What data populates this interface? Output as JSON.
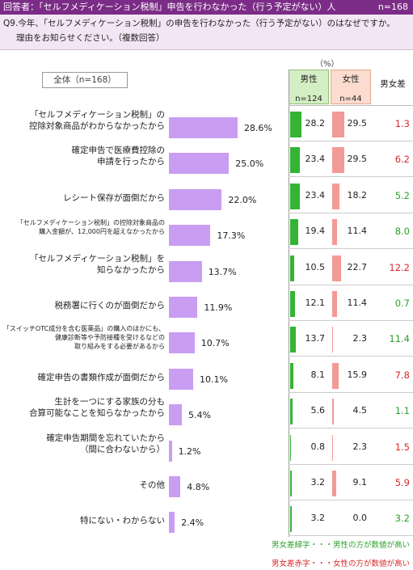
{
  "header": {
    "respondents": "回答者：「セルフメディケーション税制」申告を行わなかった（行う予定がない）人",
    "total_n": "n=168"
  },
  "question": {
    "line1": "Q9.今年、「セルフメディケーション税制」の申告を行わなかった（行う予定がない）のはなぜですか。",
    "line2": "理由をお知らせください。（複数回答）"
  },
  "total_box": "全体（n=168）",
  "pct_unit": "（%）",
  "columns": {
    "male_label": "男性",
    "male_n": "n=124",
    "female_label": "女性",
    "female_n": "n=44",
    "diff_label": "男女差"
  },
  "colors": {
    "bar": "#c99df2",
    "male": "#35b335",
    "female": "#f29a96",
    "green_text": "#2ea02e",
    "red_text": "#d9282a"
  },
  "chart_data": {
    "type": "bar",
    "orientation": "horizontal",
    "unit": "%",
    "categories": [
      [
        "「セルフメディケーション税制」の",
        "控除対象商品がわからなかったから"
      ],
      [
        "確定申告で医療費控除の",
        "申請を行ったから"
      ],
      [
        "レシート保存が面倒だから"
      ],
      [
        "「セルフメディケーション税制」の控除対象商品の",
        "購入金額が、12,000円を超えなかったから"
      ],
      [
        "「セルフメディケーション税制」を",
        "知らなかったから"
      ],
      [
        "税務署に行くのが面倒だから"
      ],
      [
        "「スイッチOTC成分を含む医薬品」の購入のほかにも、",
        "健康診断等や予防接種を受けるなどの",
        "取り組みをする必要があるから"
      ],
      [
        "確定申告の書類作成が面倒だから"
      ],
      [
        "生計を一つにする家族の分も",
        "合算可能なことを知らなかったから"
      ],
      [
        "確定申告期間を忘れていたから",
        "（間に合わないから）"
      ],
      [
        "その他"
      ],
      [
        "特にない・わからない"
      ]
    ],
    "small_label_rows": [
      3,
      6
    ],
    "values": [
      28.6,
      25.0,
      22.0,
      17.3,
      13.7,
      11.9,
      10.7,
      10.1,
      5.4,
      1.2,
      4.8,
      2.4
    ],
    "value_labels": [
      "28.6%",
      "25.0%",
      "22.0%",
      "17.3%",
      "13.7%",
      "11.9%",
      "10.7%",
      "10.1%",
      "5.4%",
      "1.2%",
      "4.8%",
      "2.4%"
    ],
    "male": [
      "28.2",
      "23.4",
      "23.4",
      "19.4",
      "10.5",
      "12.1",
      "13.7",
      "8.1",
      "5.6",
      "0.8",
      "3.2",
      "3.2"
    ],
    "female": [
      "29.5",
      "29.5",
      "18.2",
      "11.4",
      "22.7",
      "11.4",
      "2.3",
      "15.9",
      "4.5",
      "2.3",
      "9.1",
      "0.0"
    ],
    "diff": [
      "1.3",
      "6.2",
      "5.2",
      "8.0",
      "12.2",
      "0.7",
      "11.4",
      "7.8",
      "1.1",
      "1.5",
      "5.9",
      "3.2"
    ],
    "diff_color": [
      "red",
      "red",
      "green",
      "green",
      "red",
      "green",
      "green",
      "red",
      "green",
      "red",
      "red",
      "green"
    ],
    "xlim": [
      0,
      100
    ]
  },
  "notes": {
    "green": "男女差緑字・・・男性の方が数値が高い",
    "red": "男女差赤字・・・女性の方が数値が高い"
  }
}
